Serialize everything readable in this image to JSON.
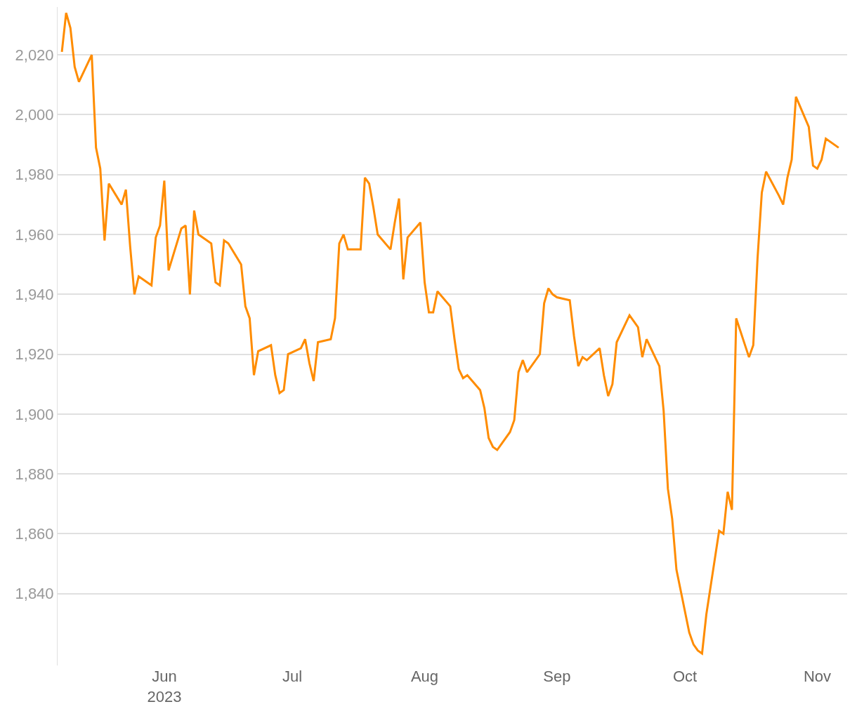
{
  "chart_data": {
    "type": "line",
    "grid": "y",
    "marker": "none",
    "line_style": "solid",
    "xlim": [
      "2023-05-07",
      "2023-11-08"
    ],
    "ylim": [
      1816,
      2036
    ],
    "xticks": [
      {
        "value": "2023-06-01",
        "label": "Jun\n2023"
      },
      {
        "value": "2023-07-01",
        "label": "Jul"
      },
      {
        "value": "2023-08-01",
        "label": "Aug"
      },
      {
        "value": "2023-09-01",
        "label": "Sep"
      },
      {
        "value": "2023-10-01",
        "label": "Oct"
      },
      {
        "value": "2023-11-01",
        "label": "Nov"
      }
    ],
    "yticks": [
      {
        "value": 1840,
        "label": "1,840"
      },
      {
        "value": 1860,
        "label": "1,860"
      },
      {
        "value": 1880,
        "label": "1,880"
      },
      {
        "value": 1900,
        "label": "1,900"
      },
      {
        "value": 1920,
        "label": "1,920"
      },
      {
        "value": 1940,
        "label": "1,940"
      },
      {
        "value": 1960,
        "label": "1,960"
      },
      {
        "value": 1980,
        "label": "1,980"
      },
      {
        "value": 2000,
        "label": "2,000"
      },
      {
        "value": 2020,
        "label": "2,020"
      }
    ],
    "x": [
      "2023-05-08",
      "2023-05-09",
      "2023-05-10",
      "2023-05-11",
      "2023-05-12",
      "2023-05-15",
      "2023-05-16",
      "2023-05-17",
      "2023-05-18",
      "2023-05-19",
      "2023-05-22",
      "2023-05-23",
      "2023-05-24",
      "2023-05-25",
      "2023-05-26",
      "2023-05-29",
      "2023-05-30",
      "2023-05-31",
      "2023-06-01",
      "2023-06-02",
      "2023-06-05",
      "2023-06-06",
      "2023-06-07",
      "2023-06-08",
      "2023-06-09",
      "2023-06-12",
      "2023-06-13",
      "2023-06-14",
      "2023-06-15",
      "2023-06-16",
      "2023-06-19",
      "2023-06-20",
      "2023-06-21",
      "2023-06-22",
      "2023-06-23",
      "2023-06-26",
      "2023-06-27",
      "2023-06-28",
      "2023-06-29",
      "2023-06-30",
      "2023-07-03",
      "2023-07-04",
      "2023-07-05",
      "2023-07-06",
      "2023-07-07",
      "2023-07-10",
      "2023-07-11",
      "2023-07-12",
      "2023-07-13",
      "2023-07-14",
      "2023-07-17",
      "2023-07-18",
      "2023-07-19",
      "2023-07-20",
      "2023-07-21",
      "2023-07-24",
      "2023-07-25",
      "2023-07-26",
      "2023-07-27",
      "2023-07-28",
      "2023-07-31",
      "2023-08-01",
      "2023-08-02",
      "2023-08-03",
      "2023-08-04",
      "2023-08-07",
      "2023-08-08",
      "2023-08-09",
      "2023-08-10",
      "2023-08-11",
      "2023-08-14",
      "2023-08-15",
      "2023-08-16",
      "2023-08-17",
      "2023-08-18",
      "2023-08-21",
      "2023-08-22",
      "2023-08-23",
      "2023-08-24",
      "2023-08-25",
      "2023-08-28",
      "2023-08-29",
      "2023-08-30",
      "2023-08-31",
      "2023-09-01",
      "2023-09-04",
      "2023-09-05",
      "2023-09-06",
      "2023-09-07",
      "2023-09-08",
      "2023-09-11",
      "2023-09-12",
      "2023-09-13",
      "2023-09-14",
      "2023-09-15",
      "2023-09-18",
      "2023-09-19",
      "2023-09-20",
      "2023-09-21",
      "2023-09-22",
      "2023-09-25",
      "2023-09-26",
      "2023-09-27",
      "2023-09-28",
      "2023-09-29",
      "2023-10-02",
      "2023-10-03",
      "2023-10-04",
      "2023-10-05",
      "2023-10-06",
      "2023-10-09",
      "2023-10-10",
      "2023-10-11",
      "2023-10-12",
      "2023-10-13",
      "2023-10-16",
      "2023-10-17",
      "2023-10-18",
      "2023-10-19",
      "2023-10-20",
      "2023-10-23",
      "2023-10-24",
      "2023-10-25",
      "2023-10-26",
      "2023-10-27",
      "2023-10-30",
      "2023-10-31",
      "2023-11-01",
      "2023-11-02",
      "2023-11-03",
      "2023-11-06"
    ],
    "series": [
      {
        "color": "#ff8c00",
        "values": [
          2021,
          2034,
          2029,
          2016,
          2011,
          2020,
          1989,
          1982,
          1958,
          1977,
          1970,
          1975,
          1956,
          1940,
          1946,
          1943,
          1959,
          1963,
          1978,
          1948,
          1962,
          1963,
          1940,
          1968,
          1960,
          1957,
          1944,
          1943,
          1958,
          1957,
          1950,
          1936,
          1932,
          1913,
          1921,
          1923,
          1913,
          1907,
          1908,
          1920,
          1922,
          1925,
          1917,
          1911,
          1924,
          1925,
          1932,
          1957,
          1960,
          1955,
          1955,
          1979,
          1977,
          1969,
          1960,
          1955,
          1964,
          1972,
          1945,
          1959,
          1964,
          1944,
          1934,
          1934,
          1941,
          1936,
          1925,
          1915,
          1912,
          1913,
          1908,
          1902,
          1892,
          1889,
          1888,
          1894,
          1898,
          1914,
          1918,
          1914,
          1920,
          1937,
          1942,
          1940,
          1939,
          1938,
          1926,
          1916,
          1919,
          1918,
          1922,
          1913,
          1906,
          1910,
          1924,
          1933,
          1931,
          1929,
          1919,
          1925,
          1916,
          1901,
          1875,
          1865,
          1848,
          1827,
          1823,
          1821,
          1820,
          1833,
          1861,
          1860,
          1874,
          1868,
          1932,
          1919,
          1923,
          1952,
          1974,
          1981,
          1973,
          1970,
          1979,
          1985,
          2006,
          1996,
          1983,
          1982,
          1985,
          1992,
          1989
        ]
      }
    ]
  }
}
